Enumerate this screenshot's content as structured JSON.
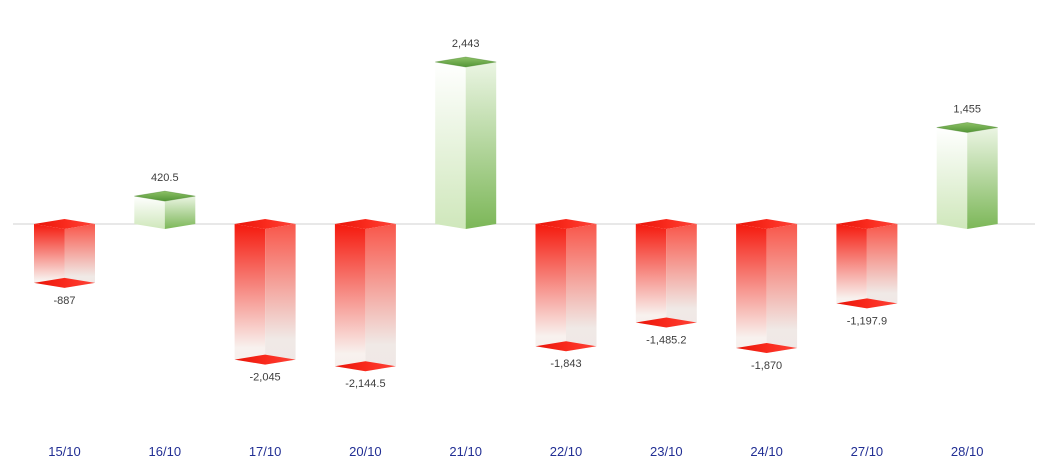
{
  "chart_data": {
    "type": "bar",
    "style": "3d-box-columns",
    "title": "",
    "xlabel": "",
    "ylabel": "",
    "categories": [
      "15/10",
      "16/10",
      "17/10",
      "20/10",
      "21/10",
      "22/10",
      "23/10",
      "24/10",
      "27/10",
      "28/10"
    ],
    "values": [
      -887,
      420.5,
      -2045,
      -2144.5,
      2443,
      -1843,
      -1485.2,
      -1870,
      -1197.9,
      1455
    ],
    "value_labels": [
      "-887",
      "420.5",
      "-2,045",
      "-2,144.5",
      "2,443",
      "-1,843",
      "-1,485.2",
      "-1,870",
      "-1,197.9",
      "1,455"
    ],
    "ylim": [
      -2500,
      2700
    ],
    "grid": false,
    "legend": false,
    "y_axis_visible": false,
    "zero_line": true,
    "data_labels_visible": true,
    "colors": {
      "positive_fill": "#6fb14c",
      "positive_light": "#cfe7bb",
      "positive_diamond_dark": "#539537",
      "positive_diamond_light": "#8dc166",
      "negative_fill": "#f5190d",
      "negative_light": "#f9564a",
      "negative_diamond_dark": "#e81408",
      "negative_diamond_light": "#fd4338",
      "fade_to": "#f6efec",
      "axis_line": "#d9d9d9",
      "data_label_text": "#3d3d3d",
      "category_label_text": "#222f94",
      "background": "#ffffff"
    }
  }
}
